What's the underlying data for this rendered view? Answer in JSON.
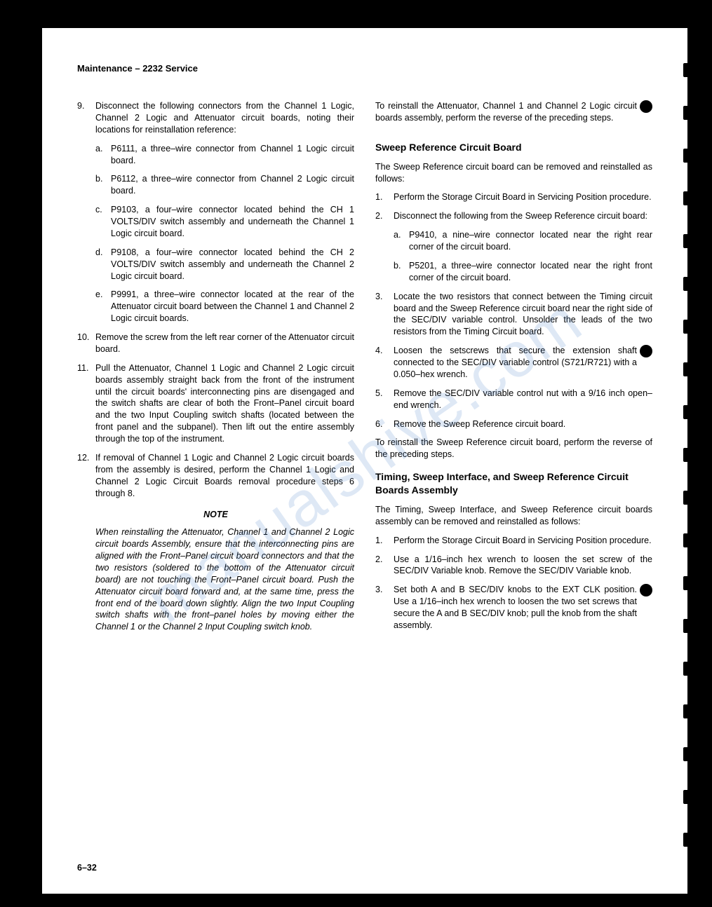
{
  "header": "Maintenance – 2232 Service",
  "page_number": "6–32",
  "watermark": "manualshive.com",
  "left": {
    "i9": {
      "n": "9.",
      "t": "Disconnect the following connectors from the Channel 1 Logic, Channel 2 Logic and Attenuator circuit boards, noting their locations for reinstallation reference:"
    },
    "i9a": {
      "n": "a.",
      "t": "P6111, a three–wire connector from Channel 1 Logic circuit board."
    },
    "i9b": {
      "n": "b.",
      "t": "P6112, a three–wire connector from Channel 2 Logic circuit board."
    },
    "i9c": {
      "n": "c.",
      "t": "P9103, a four–wire connector located behind the CH 1 VOLTS/DIV switch assembly and underneath the Channel 1 Logic circuit board."
    },
    "i9d": {
      "n": "d.",
      "t": "P9108, a four–wire connector located behind the CH 2 VOLTS/DIV switch assembly and underneath the Channel 2 Logic circuit board."
    },
    "i9e": {
      "n": "e.",
      "t": "P9991, a three–wire connector located at the rear of the Attenuator circuit board between the Channel 1 and Channel 2 Logic circuit boards."
    },
    "i10": {
      "n": "10.",
      "t": "Remove the screw from the left rear corner of the Attenuator circuit board."
    },
    "i11": {
      "n": "11.",
      "t": "Pull the Attenuator, Channel 1 Logic and Channel 2 Logic circuit boards assembly straight back from the front of the instrument until the circuit boards' interconnecting pins are disengaged and the switch shafts are clear of both the Front–Panel circuit board and the two Input Coupling switch shafts (located between the front panel and the subpanel). Then lift out the entire assembly through the top of the instrument."
    },
    "i12": {
      "n": "12.",
      "t": "If removal of Channel 1 Logic and Channel 2 Logic circuit boards from the assembly is desired, perform the Channel 1 Logic and Channel 2 Logic Circuit Boards removal procedure steps 6 through 8."
    },
    "note_h": "NOTE",
    "note": "When reinstalling the Attenuator, Channel 1 and Channel 2 Logic circuit boards Assembly, ensure that the interconnecting pins are aligned with the Front–Panel circuit board connectors and that the two resistors (soldered to the bottom of the Attenuator circuit board) are not touching the Front–Panel circuit board. Push the Attenuator circuit board forward and, at the same time, press the front end of the board down slightly. Align the two Input Coupling switch shafts with the front–panel holes by moving either the Channel 1 or the Channel 2 Input Coupling switch knob."
  },
  "right": {
    "p1": "To reinstall the Attenuator, Channel 1 and Channel 2 Logic circuit boards assembly, perform the reverse of the preceding steps.",
    "h1": "Sweep Reference Circuit Board",
    "p2": "The Sweep Reference circuit board can be removed and reinstalled as follows:",
    "s1": {
      "n": "1.",
      "t": "Perform the Storage Circuit Board in Servicing Position procedure."
    },
    "s2": {
      "n": "2.",
      "t": "Disconnect the following from the Sweep Reference circuit board:"
    },
    "s2a": {
      "n": "a.",
      "t": "P9410, a nine–wire connector located near the right rear corner of the circuit board."
    },
    "s2b": {
      "n": "b.",
      "t": "P5201, a three–wire connector located near the right front corner of the circuit board."
    },
    "s3": {
      "n": "3.",
      "t": "Locate the two resistors that connect between the Timing circuit board and the Sweep Reference circuit board near the right side of the SEC/DIV variable control. Unsolder the leads of the two resistors from the Timing Circuit board."
    },
    "s4": {
      "n": "4.",
      "t": "Loosen the setscrews that secure the extension shaft connected to the SEC/DIV variable control (S721/R721) with a 0.050–hex wrench."
    },
    "s5": {
      "n": "5.",
      "t": "Remove the SEC/DIV variable control nut with a 9/16 inch open–end wrench."
    },
    "s6": {
      "n": "6.",
      "t": "Remove the Sweep Reference circuit board."
    },
    "p3": "To reinstall the Sweep Reference circuit board, perform the reverse of the preceding steps.",
    "h2": "Timing, Sweep Interface, and Sweep Reference Circuit Boards Assembly",
    "p4": "The Timing, Sweep Interface, and Sweep Reference circuit boards assembly can be removed and reinstalled as follows:",
    "t1": {
      "n": "1.",
      "t": "Perform the Storage Circuit Board in Servicing Position procedure."
    },
    "t2": {
      "n": "2.",
      "t": "Use a 1/16–inch hex wrench to loosen the set screw of the SEC/DIV Variable knob. Remove the SEC/DIV Variable knob."
    },
    "t3": {
      "n": "3.",
      "t": "Set both A and B SEC/DIV knobs to the EXT CLK position. Use a 1/16–inch hex wrench to loosen the two set screws that secure the A and B SEC/DIV knob; pull the knob from the shaft assembly."
    }
  }
}
